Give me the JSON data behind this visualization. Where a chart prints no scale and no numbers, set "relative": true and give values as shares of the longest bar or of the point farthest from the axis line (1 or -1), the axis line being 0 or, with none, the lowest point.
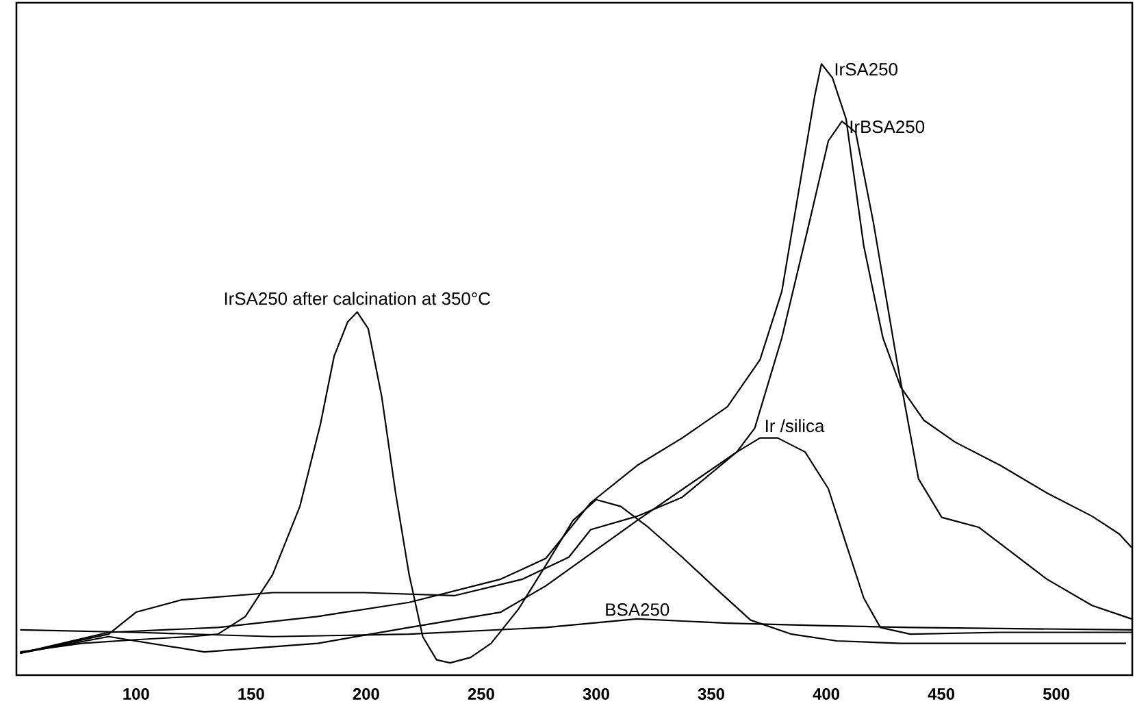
{
  "chart_data": {
    "type": "line",
    "relative": true,
    "xlim": [
      48,
      533
    ],
    "xticks": [
      100,
      150,
      200,
      250,
      300,
      350,
      400,
      450,
      500
    ],
    "tick_labels": "x",
    "series": [
      {
        "name": "IrSA250 after calcination at 350°C",
        "color": "#000000",
        "x": [
          49.6,
          76.3,
          100,
          123.7,
          135.6,
          147.5,
          159.3,
          171.2,
          180.1,
          186.1,
          192,
          196.1,
          200.9,
          206.8,
          212.8,
          218.7,
          224.6,
          230.6,
          236.5,
          245.4,
          254.3,
          266.2,
          278,
          289.9,
          300,
          310.7,
          322.6,
          337.4,
          352.2,
          367.1,
          384.9,
          404.5,
          432.3,
          467.9,
          503.6,
          530.3
        ],
        "values": [
          0.038,
          0.052,
          0.058,
          0.063,
          0.067,
          0.096,
          0.164,
          0.276,
          0.41,
          0.522,
          0.578,
          0.594,
          0.567,
          0.455,
          0.298,
          0.164,
          0.063,
          0.025,
          0.02,
          0.029,
          0.052,
          0.108,
          0.179,
          0.253,
          0.287,
          0.276,
          0.242,
          0.193,
          0.141,
          0.09,
          0.067,
          0.056,
          0.052,
          0.052,
          0.052,
          0.052
        ]
      },
      {
        "name": "IrSA250",
        "color": "#000000",
        "x": [
          49.6,
          88.1,
          135.6,
          178.9,
          218.7,
          258.5,
          278.1,
          297.6,
          317.8,
          337.4,
          357.0,
          371.2,
          380.7,
          389.0,
          395.0,
          397.9,
          402.7,
          408.6,
          416.3,
          424.6,
          432.4,
          442.4,
          456.1,
          475.7,
          495.9,
          515.5,
          527.3,
          532.7
        ],
        "values": [
          0.036,
          0.07,
          0.078,
          0.096,
          0.119,
          0.157,
          0.191,
          0.282,
          0.343,
          0.388,
          0.439,
          0.516,
          0.628,
          0.814,
          0.948,
          1.0,
          0.977,
          0.91,
          0.702,
          0.552,
          0.471,
          0.417,
          0.381,
          0.343,
          0.298,
          0.26,
          0.231,
          0.209
        ]
      },
      {
        "name": "IrBSA250",
        "color": "#000000",
        "x": [
          49.6,
          88.1,
          129.7,
          178.9,
          218.7,
          258.5,
          278.1,
          317.8,
          361.1,
          368.9,
          380.7,
          392.6,
          400.9,
          406.8,
          412.8,
          420.5,
          430.6,
          440.1,
          450.2,
          466.2,
          475.7,
          495.9,
          515.5,
          532.7
        ],
        "values": [
          0.036,
          0.063,
          0.038,
          0.052,
          0.078,
          0.103,
          0.146,
          0.253,
          0.365,
          0.404,
          0.552,
          0.74,
          0.874,
          0.906,
          0.888,
          0.74,
          0.516,
          0.321,
          0.258,
          0.242,
          0.215,
          0.157,
          0.114,
          0.092
        ]
      },
      {
        "name": "Ir /silica",
        "color": "#000000",
        "x": [
          49.6,
          88.1,
          100,
          119.6,
          159.4,
          199.1,
          238.3,
          268.0,
          288.1,
          297.6,
          317.8,
          337.4,
          361.1,
          371.2,
          378.9,
          390.8,
          400.9,
          408.6,
          416.3,
          423.5,
          436.5,
          475.7,
          532.7
        ],
        "values": [
          0.036,
          0.067,
          0.103,
          0.123,
          0.135,
          0.135,
          0.13,
          0.157,
          0.193,
          0.238,
          0.26,
          0.291,
          0.365,
          0.388,
          0.388,
          0.365,
          0.305,
          0.215,
          0.126,
          0.078,
          0.067,
          0.07,
          0.07
        ]
      },
      {
        "name": "BSA250",
        "color": "#000000",
        "x": [
          49.6,
          100,
          159.4,
          218.7,
          278.1,
          317.8,
          357.0,
          396.8,
          436.5,
          532.7
        ],
        "values": [
          0.074,
          0.07,
          0.063,
          0.067,
          0.078,
          0.092,
          0.085,
          0.081,
          0.078,
          0.074
        ]
      }
    ]
  }
}
